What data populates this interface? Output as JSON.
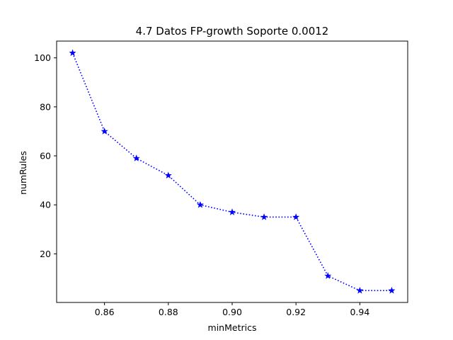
{
  "chart_data": {
    "type": "line",
    "title": "4.7 Datos FP-growth Soporte 0.0012",
    "xlabel": "minMetrics",
    "ylabel": "numRules",
    "x": [
      0.85,
      0.86,
      0.87,
      0.88,
      0.89,
      0.9,
      0.91,
      0.92,
      0.93,
      0.94,
      0.95
    ],
    "series": [
      {
        "values": [
          102,
          70,
          59,
          52,
          40,
          37,
          35,
          35,
          11,
          5,
          5
        ],
        "color": "#0000ff",
        "line_style": "dotted",
        "marker": "star"
      }
    ],
    "xlim": [
      0.845,
      0.955
    ],
    "ylim": [
      0.15,
      106.85
    ],
    "xticks": [
      0.86,
      0.88,
      0.9,
      0.92,
      0.94
    ],
    "xtick_labels": [
      "0.86",
      "0.88",
      "0.90",
      "0.92",
      "0.94"
    ],
    "yticks": [
      20,
      40,
      60,
      80,
      100
    ],
    "ytick_labels": [
      "20",
      "40",
      "60",
      "80",
      "100"
    ],
    "grid": false,
    "legend": "none"
  }
}
